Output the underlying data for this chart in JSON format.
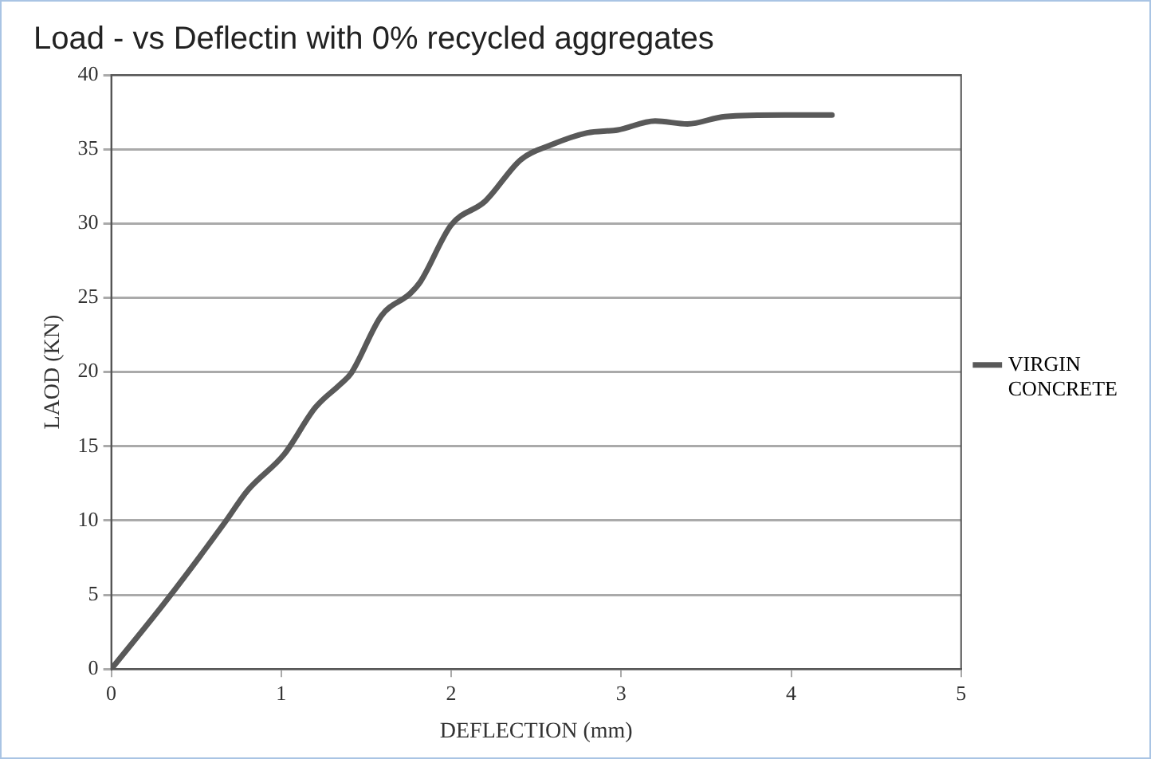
{
  "chart_data": {
    "type": "line",
    "title": "Load - vs Deflectin with 0% recycled aggregates",
    "xlabel": "DEFLECTION (mm)",
    "ylabel": "LAOD (KN)",
    "series": [
      {
        "name": "VIRGIN CONCRETE",
        "color": "#595959",
        "x": [
          0,
          0.33,
          0.67,
          0.8,
          1.02,
          1.2,
          1.35,
          1.41,
          1.59,
          1.76,
          1.82,
          2.0,
          2.2,
          2.41,
          2.59,
          2.8,
          2.98,
          3.2,
          3.39,
          3.61,
          3.96,
          4.24
        ],
        "values": [
          0,
          4.7,
          9.9,
          12.0,
          14.5,
          17.6,
          19.2,
          19.9,
          23.8,
          25.3,
          26.1,
          29.9,
          31.5,
          34.3,
          35.3,
          36.1,
          36.3,
          36.9,
          36.7,
          37.2,
          37.3,
          37.3
        ]
      }
    ],
    "xlim": [
      0,
      5
    ],
    "xticks": [
      0,
      1,
      2,
      3,
      4,
      5
    ],
    "ylim": [
      0,
      40
    ],
    "yticks": [
      0,
      5,
      10,
      15,
      20,
      25,
      30,
      35,
      40
    ],
    "grid": "y",
    "legend": "right",
    "marker": "none",
    "line_style": "solid"
  }
}
